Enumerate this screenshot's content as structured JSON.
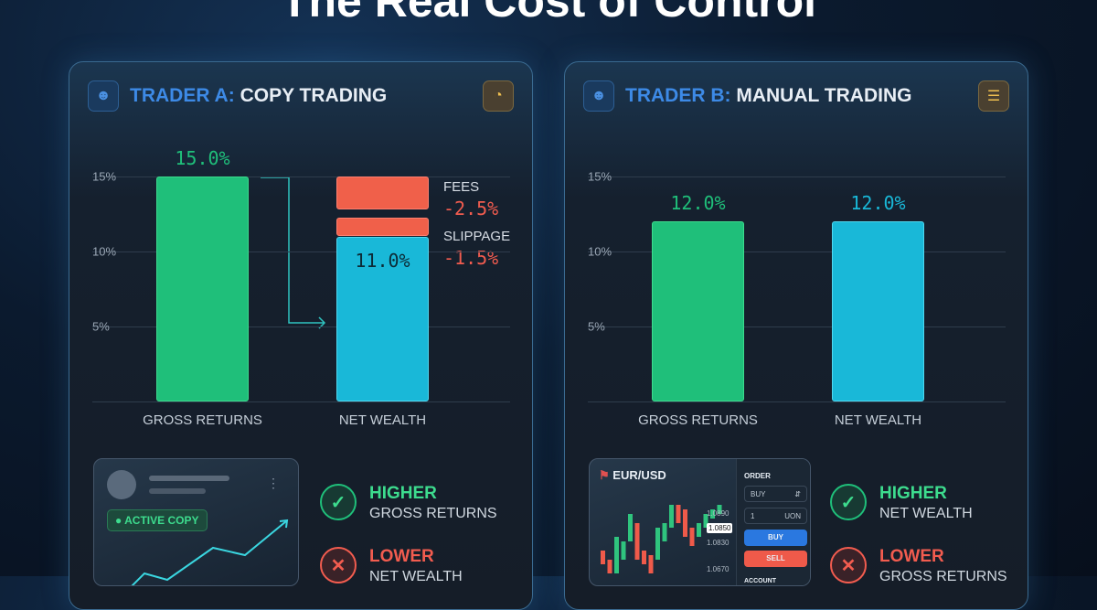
{
  "title": "The Real Cost of Control",
  "colors": {
    "green": "#1fbf7a",
    "cyan": "#19b8d8",
    "red": "#f25c4f",
    "blue": "#3d8ae6"
  },
  "panel_a": {
    "label_prefix": "TRADER A:",
    "label": "COPY TRADING",
    "icon": "user-icon",
    "badge_icon": "pie-chart-icon",
    "card": {
      "badge": "ACTIVE COPY",
      "menu_icon": "more-vertical-icon"
    },
    "callouts": [
      {
        "word": "HIGHER",
        "text": "GROSS RETURNS",
        "icon": "check-icon"
      },
      {
        "word": "LOWER",
        "text": "NET WEALTH",
        "icon": "x-icon"
      }
    ]
  },
  "panel_b": {
    "label_prefix": "TRADER B:",
    "label": "MANUAL TRADING",
    "icon": "user-icon",
    "badge_icon": "layers-icon",
    "card": {
      "pair": "EUR/USD",
      "order_label": "ORDER",
      "side": "BUY",
      "qty": "1",
      "unit": "UON",
      "buy": "BUY",
      "sell": "SELL",
      "account": "ACCOUNT",
      "prices": [
        "1.0890",
        "1.0850",
        "1.0830",
        "1.0670"
      ]
    },
    "callouts": [
      {
        "word": "HIGHER",
        "text": "NET WEALTH",
        "icon": "check-icon"
      },
      {
        "word": "LOWER",
        "text": "GROSS RETURNS",
        "icon": "x-icon"
      }
    ]
  },
  "chart_data": [
    {
      "type": "bar",
      "categories": [
        "GROSS RETURNS",
        "NET WEALTH"
      ],
      "values": [
        15.0,
        11.0
      ],
      "value_labels": [
        "15.0%",
        "11.0%"
      ],
      "deductions": [
        {
          "name": "FEES",
          "value": -2.5,
          "label": "-2.5%"
        },
        {
          "name": "SLIPPAGE",
          "value": -1.5,
          "label": "-1.5%"
        }
      ],
      "yticks": [
        "15%",
        "10%",
        "5%"
      ],
      "ytick_values": [
        15,
        10,
        5
      ],
      "ylim": [
        0,
        15
      ],
      "grid": true
    },
    {
      "type": "bar",
      "categories": [
        "GROSS RETURNS",
        "NET WEALTH"
      ],
      "values": [
        12.0,
        12.0
      ],
      "value_labels": [
        "12.0%",
        "12.0%"
      ],
      "yticks": [
        "15%",
        "10%",
        "5%"
      ],
      "ytick_values": [
        15,
        10,
        5
      ],
      "ylim": [
        0,
        15
      ],
      "grid": true
    }
  ]
}
